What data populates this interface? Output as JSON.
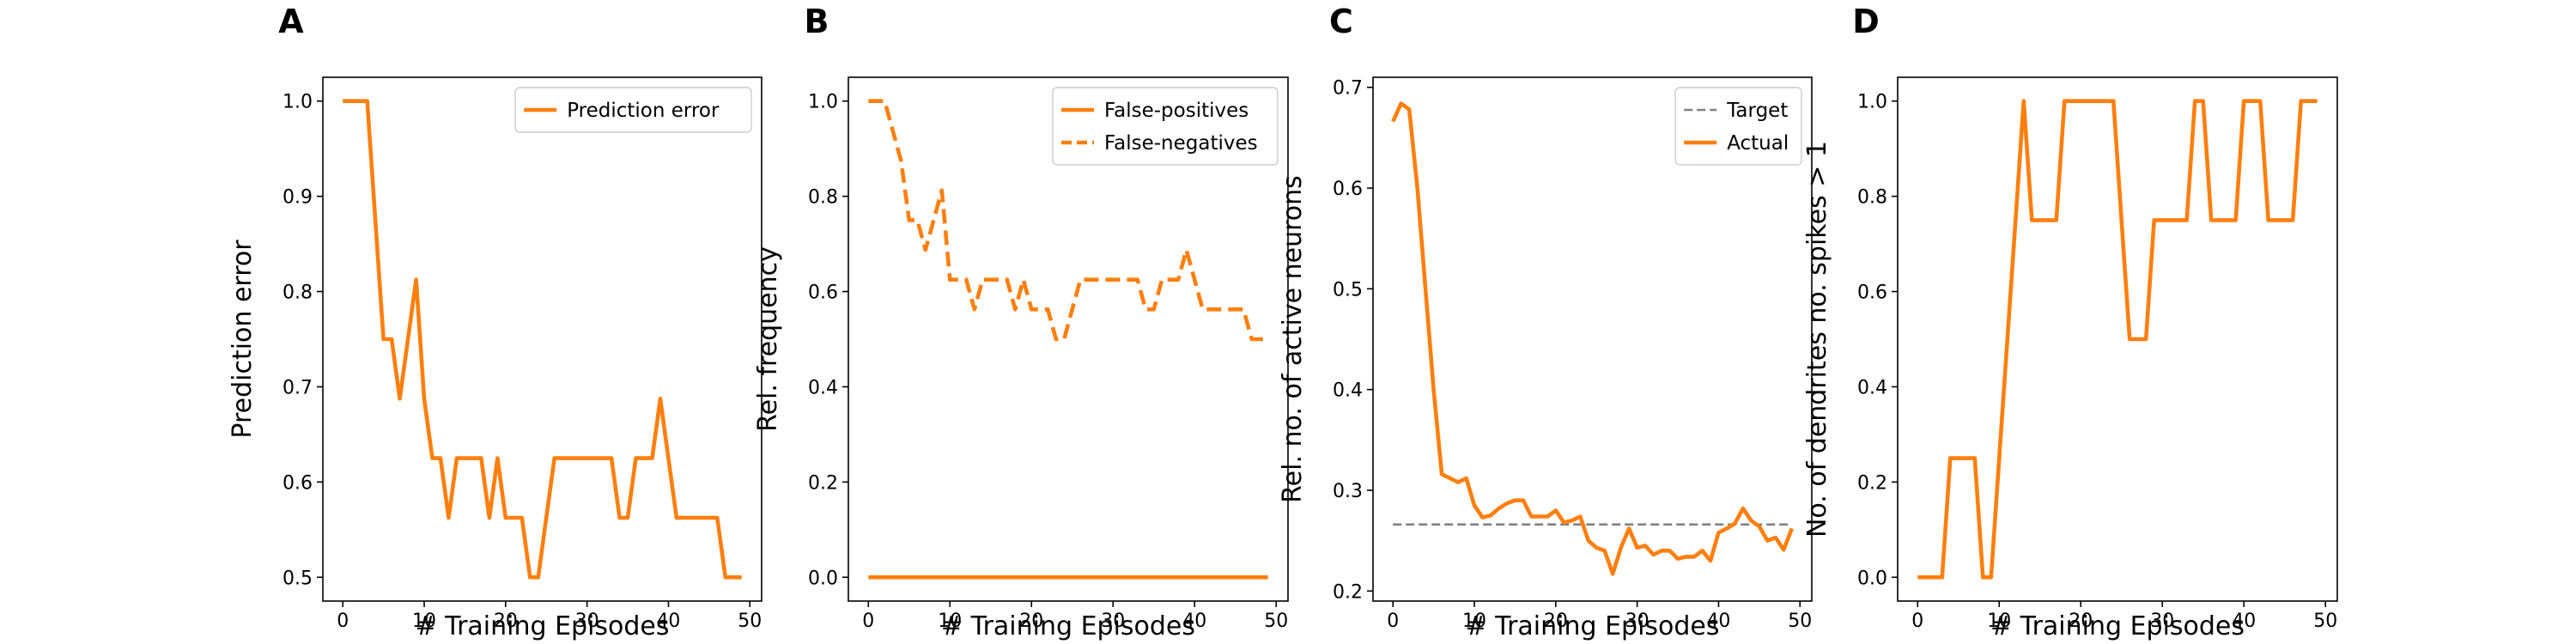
{
  "chart_data": [
    {
      "type": "line",
      "panel_letter": "A",
      "xlabel": "# Training Episodes",
      "ylabel": "Prediction error",
      "xlim": [
        -2.45,
        51.45
      ],
      "ylim": [
        0.475,
        1.025
      ],
      "xticks": [
        0,
        10,
        20,
        30,
        40,
        50
      ],
      "yticks": [
        0.5,
        0.6,
        0.7,
        0.8,
        0.9,
        1.0
      ],
      "ytick_format": 1,
      "legend_position": "top-right",
      "series": [
        {
          "name": "Prediction error",
          "color": "#ff7f0e",
          "dash": "solid",
          "x": [
            0,
            1,
            2,
            3,
            4,
            5,
            6,
            7,
            8,
            9,
            10,
            11,
            12,
            13,
            14,
            15,
            16,
            17,
            18,
            19,
            20,
            21,
            22,
            23,
            24,
            25,
            26,
            27,
            28,
            29,
            30,
            31,
            32,
            33,
            34,
            35,
            36,
            37,
            38,
            39,
            40,
            41,
            42,
            43,
            44,
            45,
            46,
            47,
            48,
            49
          ],
          "y": [
            1.0,
            1.0,
            1.0,
            1.0,
            0.875,
            0.75,
            0.75,
            0.6875,
            0.75,
            0.8125,
            0.6875,
            0.625,
            0.625,
            0.5625,
            0.625,
            0.625,
            0.625,
            0.625,
            0.5625,
            0.625,
            0.5625,
            0.5625,
            0.5625,
            0.5,
            0.5,
            0.5625,
            0.625,
            0.625,
            0.625,
            0.625,
            0.625,
            0.625,
            0.625,
            0.625,
            0.5625,
            0.5625,
            0.625,
            0.625,
            0.625,
            0.6875,
            0.625,
            0.5625,
            0.5625,
            0.5625,
            0.5625,
            0.5625,
            0.5625,
            0.5,
            0.5,
            0.5
          ]
        }
      ]
    },
    {
      "type": "line",
      "panel_letter": "B",
      "xlabel": "# Training Episodes",
      "ylabel": "Rel. frequency",
      "xlim": [
        -2.45,
        51.45
      ],
      "ylim": [
        -0.05,
        1.05
      ],
      "xticks": [
        0,
        10,
        20,
        30,
        40,
        50
      ],
      "yticks": [
        0.0,
        0.2,
        0.4,
        0.6,
        0.8,
        1.0
      ],
      "ytick_format": 1,
      "legend_position": "top-right",
      "series": [
        {
          "name": "False-positives",
          "color": "#ff7f0e",
          "dash": "solid",
          "x": [
            0,
            49
          ],
          "y": [
            0.0,
            0.0
          ]
        },
        {
          "name": "False-negatives",
          "color": "#ff7f0e",
          "dash": "dashed",
          "x": [
            0,
            1,
            2,
            3,
            4,
            5,
            6,
            7,
            8,
            9,
            10,
            11,
            12,
            13,
            14,
            15,
            16,
            17,
            18,
            19,
            20,
            21,
            22,
            23,
            24,
            25,
            26,
            27,
            28,
            29,
            30,
            31,
            32,
            33,
            34,
            35,
            36,
            37,
            38,
            39,
            40,
            41,
            42,
            43,
            44,
            45,
            46,
            47,
            48,
            49
          ],
          "y": [
            1.0,
            1.0,
            1.0,
            0.9375,
            0.875,
            0.75,
            0.75,
            0.6875,
            0.75,
            0.8125,
            0.625,
            0.625,
            0.625,
            0.5625,
            0.625,
            0.625,
            0.625,
            0.625,
            0.5625,
            0.625,
            0.5625,
            0.5625,
            0.5625,
            0.5,
            0.5,
            0.5625,
            0.625,
            0.625,
            0.625,
            0.625,
            0.625,
            0.625,
            0.625,
            0.625,
            0.5625,
            0.5625,
            0.625,
            0.625,
            0.625,
            0.6875,
            0.625,
            0.5625,
            0.5625,
            0.5625,
            0.5625,
            0.5625,
            0.5625,
            0.5,
            0.5,
            0.5
          ]
        }
      ]
    },
    {
      "type": "line",
      "panel_letter": "C",
      "xlabel": "# Training Episodes",
      "ylabel": "Rel. no. of active neurons",
      "xlim": [
        -2.45,
        51.45
      ],
      "ylim": [
        0.19,
        0.71
      ],
      "xticks": [
        0,
        10,
        20,
        30,
        40,
        50
      ],
      "yticks": [
        0.2,
        0.3,
        0.4,
        0.5,
        0.6,
        0.7
      ],
      "ytick_format": 1,
      "legend_position": "top-right",
      "series": [
        {
          "name": "Target",
          "color": "#808080",
          "dash": "dashed",
          "x": [
            0,
            49
          ],
          "y": [
            0.266,
            0.266
          ]
        },
        {
          "name": "Actual",
          "color": "#ff7f0e",
          "dash": "solid",
          "x": [
            0,
            1,
            2,
            3,
            4,
            5,
            6,
            7,
            8,
            9,
            10,
            11,
            12,
            13,
            14,
            15,
            16,
            17,
            18,
            19,
            20,
            21,
            22,
            23,
            24,
            25,
            26,
            27,
            28,
            29,
            30,
            31,
            32,
            33,
            34,
            35,
            36,
            37,
            38,
            39,
            40,
            41,
            42,
            43,
            44,
            45,
            46,
            47,
            48,
            49
          ],
          "y": [
            0.666,
            0.684,
            0.678,
            0.6,
            0.5,
            0.4,
            0.316,
            0.312,
            0.308,
            0.312,
            0.285,
            0.273,
            0.275,
            0.282,
            0.287,
            0.29,
            0.29,
            0.274,
            0.274,
            0.274,
            0.28,
            0.268,
            0.27,
            0.274,
            0.25,
            0.243,
            0.24,
            0.217,
            0.243,
            0.262,
            0.243,
            0.245,
            0.236,
            0.24,
            0.24,
            0.232,
            0.234,
            0.234,
            0.24,
            0.23,
            0.258,
            0.262,
            0.267,
            0.282,
            0.27,
            0.264,
            0.25,
            0.253,
            0.241,
            0.262
          ]
        }
      ]
    },
    {
      "type": "line",
      "panel_letter": "D",
      "xlabel": "# Training Episodes",
      "ylabel": "No. of dendrites no. spikes > 1",
      "xlim": [
        -2.45,
        51.45
      ],
      "ylim": [
        -0.05,
        1.05
      ],
      "xticks": [
        0,
        10,
        20,
        30,
        40,
        50
      ],
      "yticks": [
        0.0,
        0.2,
        0.4,
        0.6,
        0.8,
        1.0
      ],
      "ytick_format": 1,
      "legend_position": "none",
      "series": [
        {
          "name": "",
          "color": "#ff7f0e",
          "dash": "solid",
          "x": [
            0,
            1,
            2,
            3,
            4,
            5,
            6,
            7,
            8,
            9,
            10,
            11,
            12,
            13,
            14,
            15,
            16,
            17,
            18,
            19,
            20,
            21,
            22,
            23,
            24,
            25,
            26,
            27,
            28,
            29,
            30,
            31,
            32,
            33,
            34,
            35,
            36,
            37,
            38,
            39,
            40,
            41,
            42,
            43,
            44,
            45,
            46,
            47,
            48,
            49
          ],
          "y": [
            0.0,
            0.0,
            0.0,
            0.0,
            0.25,
            0.25,
            0.25,
            0.25,
            0.0,
            0.0,
            0.25,
            0.5,
            0.75,
            1.0,
            0.75,
            0.75,
            0.75,
            0.75,
            1.0,
            1.0,
            1.0,
            1.0,
            1.0,
            1.0,
            1.0,
            0.75,
            0.5,
            0.5,
            0.5,
            0.75,
            0.75,
            0.75,
            0.75,
            0.75,
            1.0,
            1.0,
            0.75,
            0.75,
            0.75,
            0.75,
            1.0,
            1.0,
            1.0,
            0.75,
            0.75,
            0.75,
            0.75,
            1.0,
            1.0,
            1.0
          ]
        }
      ]
    }
  ]
}
